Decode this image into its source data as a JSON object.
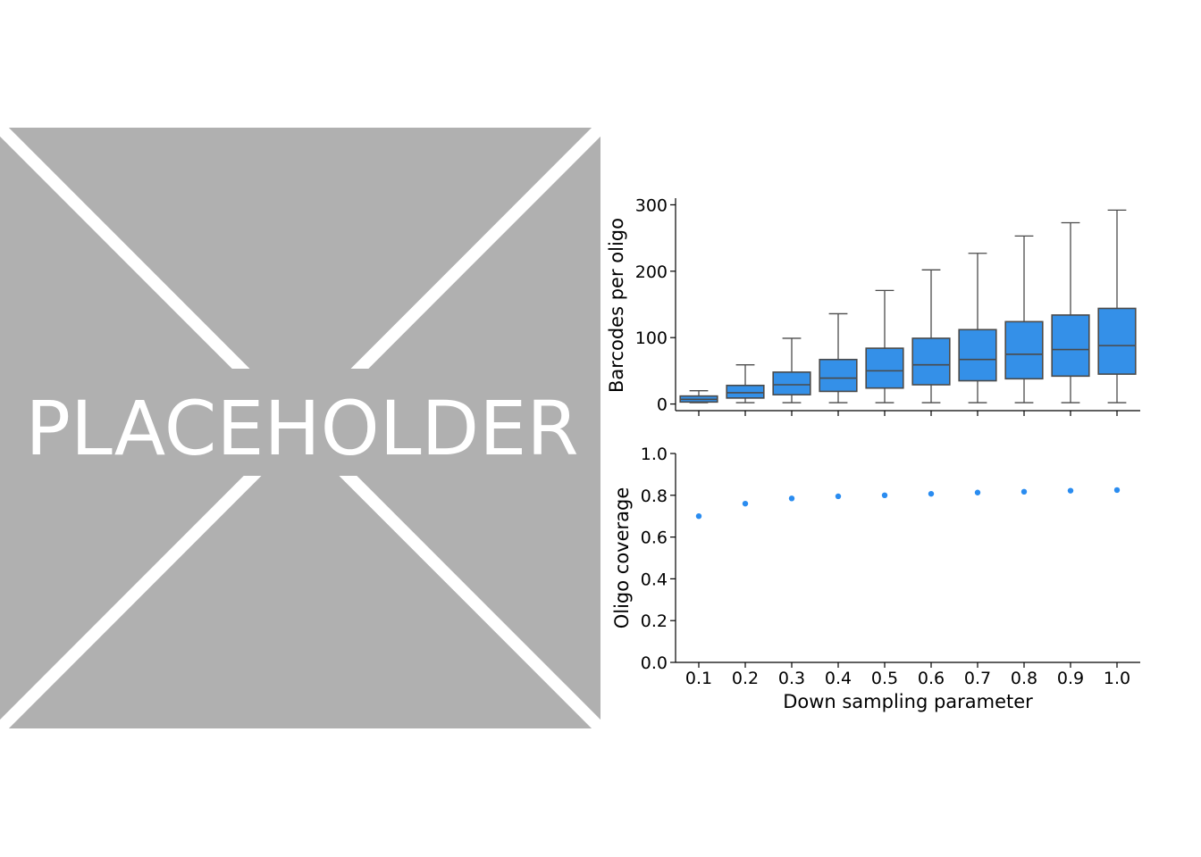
{
  "placeholder": {
    "label": "PLACEHOLDER"
  },
  "colors": {
    "box_fill": "#3490e8",
    "box_edge": "#4a4a4a",
    "point": "#2a8cf0",
    "placeholder_bg": "#b0b0b0",
    "placeholder_fg": "#ffffff"
  },
  "chart_data": [
    {
      "type": "box",
      "xlabel": "",
      "ylabel": "Barcodes per oligo",
      "ylim": [
        -10,
        310
      ],
      "yticks": [
        "0",
        "100",
        "200",
        "300"
      ],
      "categories": [
        "0.1",
        "0.2",
        "0.3",
        "0.4",
        "0.5",
        "0.6",
        "0.7",
        "0.8",
        "0.9",
        "1.0"
      ],
      "boxes": [
        {
          "x": "0.1",
          "whislo": 2,
          "q1": 3,
          "med": 7,
          "q3": 12,
          "whishi": 20
        },
        {
          "x": "0.2",
          "whislo": 2,
          "q1": 9,
          "med": 17,
          "q3": 28,
          "whishi": 59
        },
        {
          "x": "0.3",
          "whislo": 2,
          "q1": 14,
          "med": 29,
          "q3": 48,
          "whishi": 99
        },
        {
          "x": "0.4",
          "whislo": 2,
          "q1": 19,
          "med": 39,
          "q3": 67,
          "whishi": 136
        },
        {
          "x": "0.5",
          "whislo": 2,
          "q1": 24,
          "med": 50,
          "q3": 84,
          "whishi": 171
        },
        {
          "x": "0.6",
          "whislo": 2,
          "q1": 29,
          "med": 59,
          "q3": 99,
          "whishi": 202
        },
        {
          "x": "0.7",
          "whislo": 2,
          "q1": 35,
          "med": 67,
          "q3": 112,
          "whishi": 227
        },
        {
          "x": "0.8",
          "whislo": 2,
          "q1": 38,
          "med": 75,
          "q3": 124,
          "whishi": 253
        },
        {
          "x": "0.9",
          "whislo": 2,
          "q1": 42,
          "med": 82,
          "q3": 134,
          "whishi": 273
        },
        {
          "x": "1.0",
          "whislo": 2,
          "q1": 45,
          "med": 88,
          "q3": 144,
          "whishi": 292
        }
      ]
    },
    {
      "type": "scatter",
      "xlabel": "Down sampling parameter",
      "ylabel": "Oligo coverage",
      "ylim": [
        0.0,
        1.0
      ],
      "yticks": [
        "0.0",
        "0.2",
        "0.4",
        "0.6",
        "0.8",
        "1.0"
      ],
      "categories": [
        "0.1",
        "0.2",
        "0.3",
        "0.4",
        "0.5",
        "0.6",
        "0.7",
        "0.8",
        "0.9",
        "1.0"
      ],
      "values": [
        0.7,
        0.76,
        0.785,
        0.795,
        0.8,
        0.807,
        0.813,
        0.817,
        0.822,
        0.825
      ]
    }
  ]
}
